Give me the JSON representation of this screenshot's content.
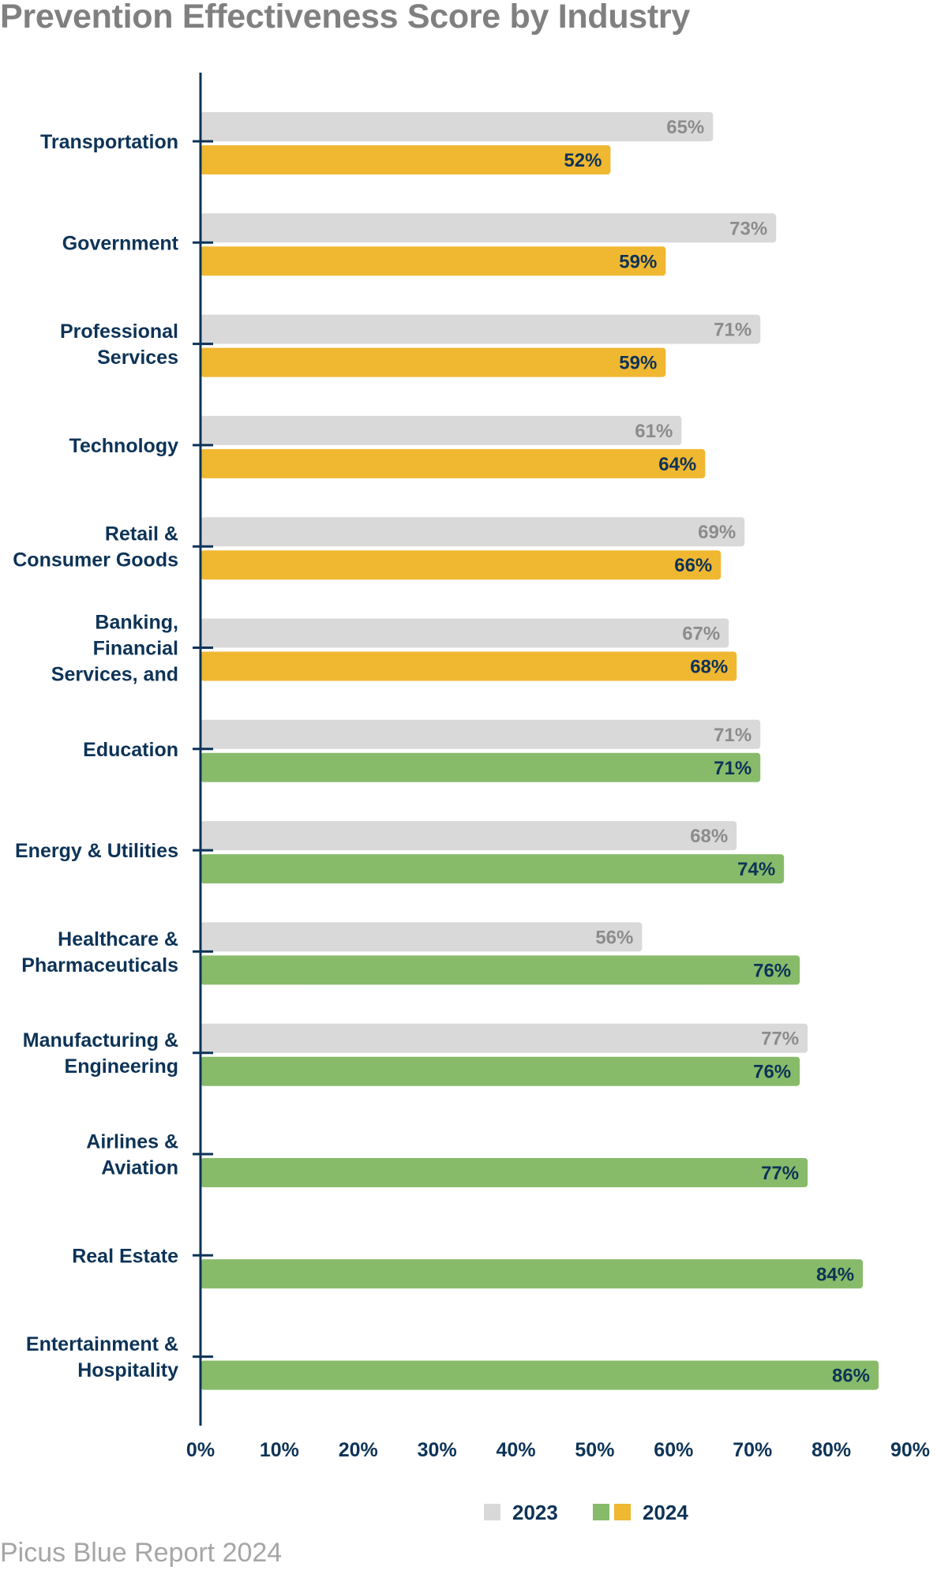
{
  "title": "Prevention Effectiveness Score by Industry",
  "footer": "Picus Blue Report 2024",
  "colors": {
    "y2023": "#d9d9d9",
    "y2024_low": "#f0b731",
    "y2024_high": "#87bb6a",
    "text": "#0d3357",
    "label2023": "#8c8c8c"
  },
  "chart_data": {
    "type": "bar",
    "orientation": "horizontal",
    "title": "Prevention Effectiveness Score by Industry",
    "xlim": [
      0,
      90
    ],
    "x_ticks": [
      "0%",
      "10%",
      "20%",
      "30%",
      "40%",
      "50%",
      "60%",
      "70%",
      "80%",
      "90%"
    ],
    "categories": [
      [
        "Transportation"
      ],
      [
        "Government"
      ],
      [
        "Professional",
        "Services"
      ],
      [
        "Technology"
      ],
      [
        "Retail &",
        "Consumer Goods"
      ],
      [
        "Banking,",
        "Financial",
        "Services, and"
      ],
      [
        "Education"
      ],
      [
        "Energy & Utilities"
      ],
      [
        "Healthcare &",
        "Pharmaceuticals"
      ],
      [
        "Manufacturing &",
        "Engineering"
      ],
      [
        "Airlines &",
        "Aviation"
      ],
      [
        "Real Estate"
      ],
      [
        "Entertainment &",
        "Hospitality"
      ]
    ],
    "series": [
      {
        "name": "2023",
        "values": [
          65,
          73,
          71,
          61,
          69,
          67,
          71,
          68,
          56,
          77,
          null,
          null,
          null
        ]
      },
      {
        "name": "2024",
        "values": [
          52,
          59,
          59,
          64,
          66,
          68,
          71,
          74,
          76,
          76,
          77,
          84,
          86
        ]
      }
    ],
    "legend": [
      "2023",
      "2024"
    ],
    "legend_position": "bottom"
  }
}
